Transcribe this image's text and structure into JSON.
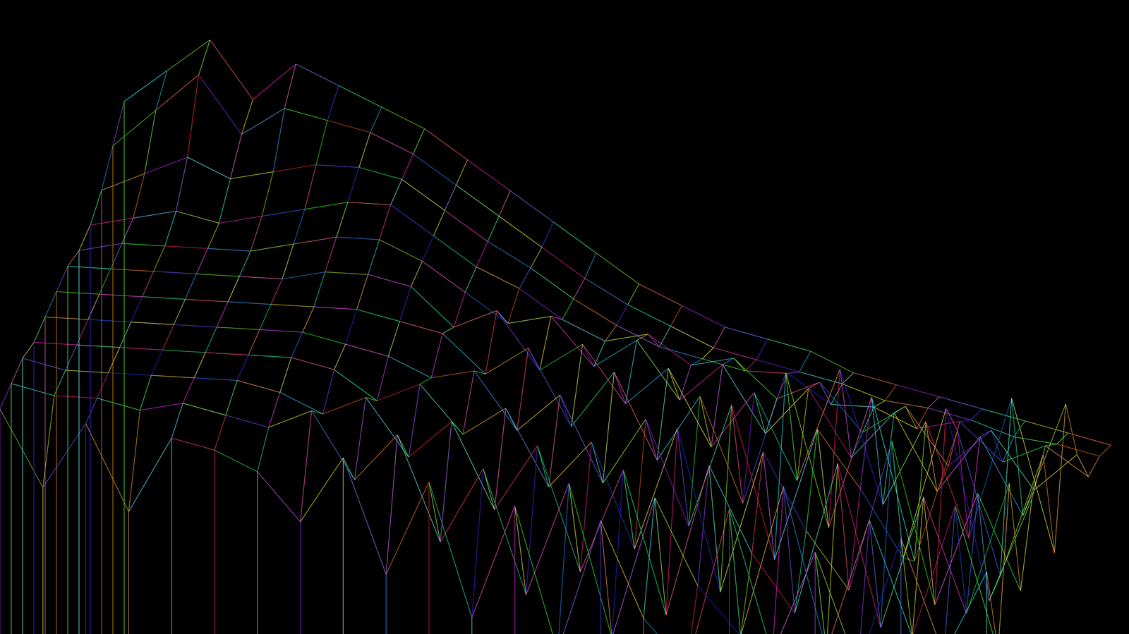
{
  "chart_data": {
    "type": "wireframe_surface",
    "tick_labels": false,
    "z": [
      [
        50,
        34,
        48,
        30,
        46,
        44,
        40,
        30,
        44,
        20,
        40,
        12,
        36,
        6,
        34,
        14,
        4,
        38,
        8,
        30,
        6,
        34,
        10,
        28
      ],
      [
        52,
        50,
        50,
        48,
        50,
        48,
        46,
        50,
        36,
        46,
        24,
        40,
        14,
        38,
        6,
        36,
        18,
        8,
        40,
        6,
        34,
        10,
        38,
        8
      ],
      [
        54,
        52,
        52,
        52,
        52,
        52,
        50,
        46,
        50,
        38,
        46,
        28,
        42,
        16,
        38,
        8,
        40,
        22,
        10,
        42,
        8,
        36,
        12,
        40
      ],
      [
        54,
        54,
        54,
        54,
        54,
        54,
        54,
        52,
        46,
        50,
        40,
        46,
        30,
        40,
        18,
        44,
        10,
        40,
        24,
        12,
        44,
        10,
        34,
        14
      ],
      [
        56,
        56,
        56,
        56,
        56,
        56,
        56,
        54,
        52,
        48,
        50,
        38,
        46,
        28,
        42,
        20,
        46,
        14,
        42,
        30,
        16,
        48,
        8,
        30
      ],
      [
        58,
        58,
        58,
        58,
        58,
        58,
        58,
        58,
        56,
        54,
        46,
        52,
        36,
        48,
        30,
        44,
        22,
        50,
        18,
        46,
        12,
        40,
        10,
        36
      ],
      [
        60,
        60,
        60,
        60,
        60,
        60,
        62,
        62,
        60,
        52,
        56,
        44,
        50,
        38,
        46,
        30,
        42,
        24,
        48,
        20,
        38,
        14,
        44,
        12
      ],
      [
        60,
        62,
        62,
        62,
        62,
        64,
        66,
        66,
        62,
        56,
        50,
        52,
        42,
        48,
        36,
        44,
        30,
        40,
        26,
        36,
        20,
        32,
        16,
        40
      ],
      [
        62,
        64,
        66,
        64,
        66,
        68,
        70,
        70,
        64,
        58,
        54,
        48,
        44,
        46,
        40,
        42,
        34,
        38,
        28,
        34,
        22,
        30,
        18,
        26
      ],
      [
        66,
        70,
        74,
        70,
        72,
        74,
        74,
        72,
        66,
        60,
        55,
        49,
        44,
        40,
        38,
        36,
        36,
        30,
        30,
        26,
        28,
        20,
        24,
        18
      ],
      [
        72,
        80,
        88,
        76,
        82,
        80,
        78,
        74,
        68,
        62,
        56,
        50,
        45,
        41,
        37,
        35,
        33,
        31,
        28,
        27,
        25,
        22,
        21,
        19
      ],
      [
        78,
        85,
        92,
        80,
        88,
        84,
        80,
        76,
        70,
        64,
        58,
        52,
        46,
        42,
        38,
        36,
        34,
        30,
        28,
        26,
        24,
        22,
        20,
        18
      ]
    ]
  }
}
